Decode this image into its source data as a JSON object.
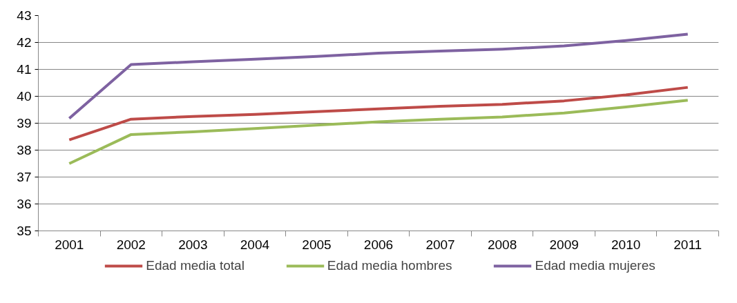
{
  "chart_data": {
    "type": "line",
    "categories": [
      "2001",
      "2002",
      "2003",
      "2004",
      "2005",
      "2006",
      "2007",
      "2008",
      "2009",
      "2010",
      "2011"
    ],
    "series": [
      {
        "name": "Edad media total",
        "color": "#be4b48",
        "values": [
          38.38,
          39.15,
          39.25,
          39.33,
          39.43,
          39.53,
          39.63,
          39.7,
          39.83,
          40.05,
          40.33
        ]
      },
      {
        "name": "Edad media hombres",
        "color": "#9bbb59",
        "values": [
          37.5,
          38.58,
          38.68,
          38.8,
          38.93,
          39.05,
          39.15,
          39.23,
          39.38,
          39.6,
          39.85
        ]
      },
      {
        "name": "Edad media mujeres",
        "color": "#7e62a1",
        "values": [
          39.18,
          41.18,
          41.28,
          41.38,
          41.48,
          41.6,
          41.68,
          41.75,
          41.87,
          42.07,
          42.31
        ]
      }
    ],
    "ylim": [
      35,
      43
    ],
    "yticks": [
      35,
      36,
      37,
      38,
      39,
      40,
      41,
      42,
      43
    ],
    "grid": "y",
    "legend": "bottom",
    "marker": "none",
    "line_style": "solid"
  }
}
